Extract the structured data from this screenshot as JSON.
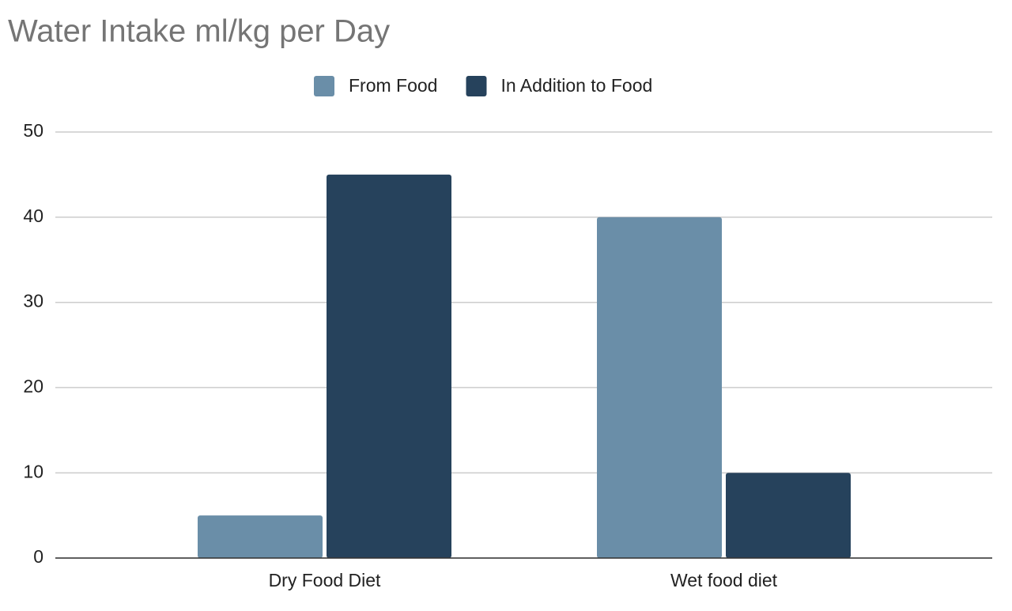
{
  "chart_data": {
    "type": "bar",
    "title": "Water Intake ml/kg per Day",
    "categories": [
      "Dry Food Diet",
      "Wet food diet"
    ],
    "series": [
      {
        "name": "From Food",
        "color": "#6a8ea8",
        "values": [
          5,
          40
        ]
      },
      {
        "name": "In Addition to Food",
        "color": "#26425c",
        "values": [
          45,
          10
        ]
      }
    ],
    "ylim": [
      0,
      50
    ],
    "yticks": [
      0,
      10,
      20,
      30,
      40,
      50
    ],
    "grid": true,
    "legend": "top"
  }
}
